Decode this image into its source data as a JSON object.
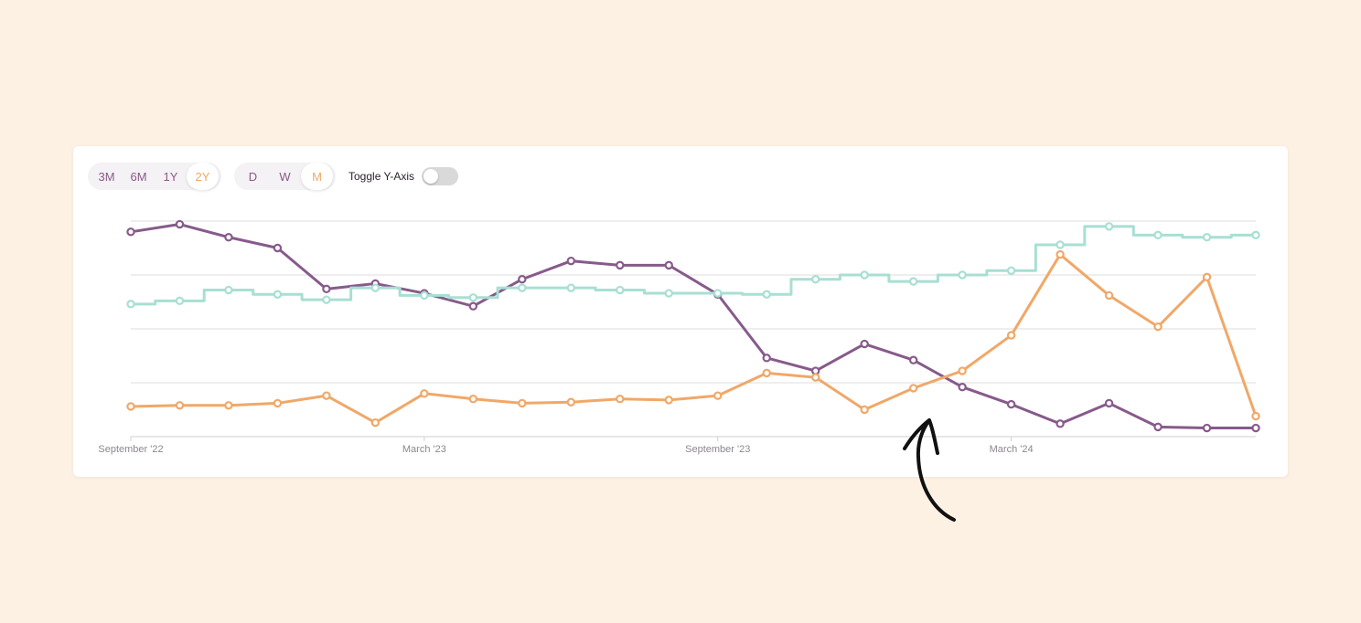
{
  "controls": {
    "ranges": [
      "3M",
      "6M",
      "1Y",
      "2Y"
    ],
    "active_range": "2Y",
    "intervals": [
      "D",
      "W",
      "M"
    ],
    "active_interval": "M",
    "toggle_label": "Toggle Y-Axis",
    "toggle_on": false
  },
  "colors": {
    "background": "#fdf1e4",
    "purple": "#875a8b",
    "orange": "#f0a868",
    "teal": "#a8dfd3",
    "grid": "#dcdcdc"
  },
  "chart_data": {
    "type": "line",
    "title": "",
    "xlabel": "",
    "ylabel": "",
    "x_tick_labels": [
      "September '22",
      "March '23",
      "September '23",
      "March '24"
    ],
    "x_tick_months": [
      0,
      6,
      12,
      18
    ],
    "x_range": [
      0,
      23
    ],
    "ylim": [
      0,
      100
    ],
    "grid": true,
    "y_axis_visible": false,
    "x": [
      0,
      1,
      2,
      3,
      4,
      5,
      6,
      7,
      8,
      9,
      10,
      11,
      12,
      13,
      14,
      15,
      16,
      17,
      18,
      19,
      20,
      21,
      22,
      23
    ],
    "series": [
      {
        "style": "line",
        "color": "#875a8b",
        "values": [
          95,
          98.5,
          92.5,
          87.5,
          68.5,
          71,
          66.5,
          60.5,
          73,
          81.5,
          79.5,
          79.5,
          66,
          36.5,
          30.5,
          43,
          35.5,
          23,
          15,
          6,
          15.5,
          4.5,
          4,
          4
        ]
      },
      {
        "style": "line",
        "color": "#f0a868",
        "values": [
          14,
          14.5,
          14.5,
          15.5,
          19,
          6.5,
          20,
          17.5,
          15.5,
          16,
          17.5,
          17,
          19,
          29.5,
          27.5,
          12.5,
          22.5,
          30.5,
          47,
          84.5,
          65.5,
          51,
          74,
          9.5
        ]
      },
      {
        "style": "step",
        "color": "#a8dfd3",
        "values": [
          61.5,
          63,
          68,
          66,
          63.5,
          69,
          65.5,
          64.5,
          69,
          69,
          68,
          66.5,
          66.5,
          66,
          73,
          75,
          72,
          75,
          77,
          89,
          97.5,
          93.5,
          92.5,
          93.5
        ]
      }
    ]
  },
  "annotation": {
    "type": "hand-drawn-arrow",
    "direction": "up",
    "color": "#111111"
  }
}
